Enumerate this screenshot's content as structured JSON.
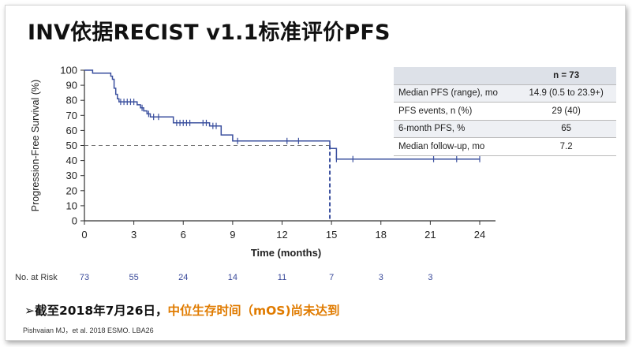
{
  "slide": {
    "title": "INV依据RECIST v1.1标准评价PFS",
    "bullet_prefix": "➢截至2018年7月26日，",
    "bullet_highlight": "中位生存时间（mOS)尚未达到",
    "citation": "Pishvaian MJ，et al. 2018 ESMO. LBA26",
    "colors": {
      "curve": "#3a4f9e",
      "highlight": "#e07b00",
      "title": "#111111"
    }
  },
  "summary_table": {
    "header": [
      "",
      "n = 73"
    ],
    "rows": [
      {
        "label": "Median PFS (range), mo",
        "value": "14.9 (0.5 to 23.9+)"
      },
      {
        "label": "PFS events, n (%)",
        "value": "29 (40)"
      },
      {
        "label": "6-month PFS, %",
        "value": "65"
      },
      {
        "label": "Median follow-up, mo",
        "value": "7.2"
      }
    ]
  },
  "risk_table": {
    "label": "No. at Risk",
    "times": [
      0,
      3,
      6,
      9,
      12,
      15,
      18,
      21
    ],
    "values": [
      "73",
      "55",
      "24",
      "14",
      "11",
      "7",
      "3",
      "3"
    ]
  },
  "chart_data": {
    "type": "line",
    "title": "",
    "xlabel": "Time (months)",
    "ylabel": "Progression-Free Survival (%)",
    "xlim": [
      0,
      24
    ],
    "ylim": [
      0,
      100
    ],
    "xticks": [
      "0",
      "3",
      "6",
      "9",
      "12",
      "15",
      "18",
      "21",
      "24"
    ],
    "yticks": [
      "0",
      "10",
      "20",
      "30",
      "40",
      "50",
      "60",
      "70",
      "80",
      "90",
      "100"
    ],
    "grid": false,
    "median_line": {
      "y": 50,
      "x": 14.9
    },
    "series": [
      {
        "step_points": [
          [
            0,
            100
          ],
          [
            0.5,
            100
          ],
          [
            0.5,
            98
          ],
          [
            1.6,
            98
          ],
          [
            1.6,
            96
          ],
          [
            1.7,
            96
          ],
          [
            1.7,
            94
          ],
          [
            1.8,
            94
          ],
          [
            1.8,
            88
          ],
          [
            1.9,
            88
          ],
          [
            1.9,
            84
          ],
          [
            2.0,
            84
          ],
          [
            2.0,
            81
          ],
          [
            2.1,
            81
          ],
          [
            2.1,
            79
          ],
          [
            3.2,
            79
          ],
          [
            3.2,
            77
          ],
          [
            3.4,
            77
          ],
          [
            3.4,
            75
          ],
          [
            3.6,
            75
          ],
          [
            3.6,
            73
          ],
          [
            3.8,
            73
          ],
          [
            3.8,
            71
          ],
          [
            4.0,
            71
          ],
          [
            4.0,
            69
          ],
          [
            5.4,
            69
          ],
          [
            5.4,
            65
          ],
          [
            7.6,
            65
          ],
          [
            7.6,
            63
          ],
          [
            8.3,
            63
          ],
          [
            8.3,
            57
          ],
          [
            9.0,
            57
          ],
          [
            9.0,
            53
          ],
          [
            14.9,
            53
          ],
          [
            14.9,
            48
          ],
          [
            15.3,
            48
          ],
          [
            15.3,
            41
          ],
          [
            24.0,
            41
          ]
        ],
        "censor_x": [
          2.2,
          2.4,
          2.6,
          2.8,
          3.0,
          3.5,
          3.9,
          4.2,
          4.5,
          5.6,
          5.8,
          6.0,
          6.2,
          6.4,
          7.2,
          7.4,
          7.8,
          8.0,
          9.3,
          12.3,
          13.0,
          15.3,
          16.3,
          21.2,
          22.6,
          24.0
        ]
      }
    ]
  }
}
